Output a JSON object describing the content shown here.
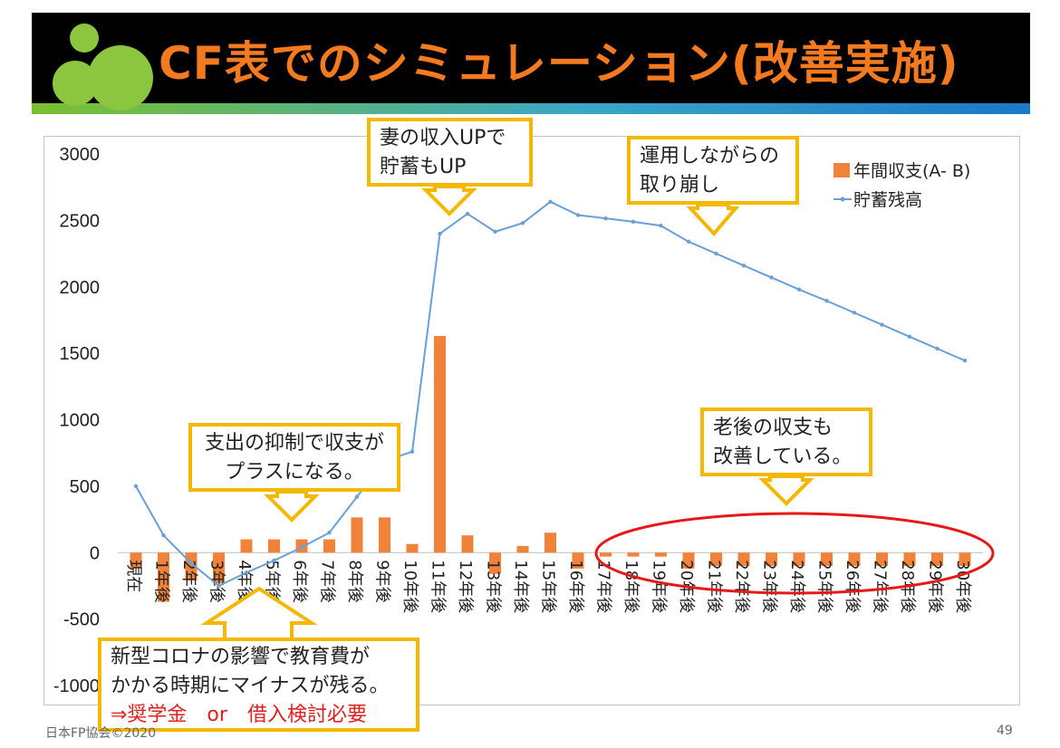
{
  "header": {
    "title": "CF表でのシミュレーション(改善実施)"
  },
  "footer": {
    "org": "日本FP協会©2020",
    "page": "49"
  },
  "annotations": [
    {
      "id": "c1",
      "lines": [
        "妻の収入UPで",
        "貯蓄もUP"
      ]
    },
    {
      "id": "c2",
      "lines": [
        "運用しながらの",
        "取り崩し"
      ]
    },
    {
      "id": "c3",
      "lines": [
        "支出の抑制で収支が",
        "プラスになる。"
      ]
    },
    {
      "id": "c4",
      "lines": [
        "老後の収支も",
        "改善している。"
      ]
    },
    {
      "id": "c5",
      "lines": [
        "新型コロナの影響で教育費が",
        "かかる時期にマイナスが残る。",
        "⇒奨学金　or　借入検討必要"
      ]
    }
  ],
  "colors": {
    "bar": "#f0823a",
    "line": "#6a9fd8",
    "callout_border": "#f5b800",
    "ellipse": "#e61919",
    "title": "#f37a1f"
  },
  "chart_data": {
    "type": "bar",
    "categories": [
      "現在",
      "1年後",
      "2年後",
      "3年後",
      "4年後",
      "5年後",
      "6年後",
      "7年後",
      "8年後",
      "9年後",
      "10年後",
      "11年後",
      "12年後",
      "13年後",
      "14年後",
      "15年後",
      "16年後",
      "17年後",
      "18年後",
      "19年後",
      "20年後",
      "21年後",
      "22年後",
      "23年後",
      "24年後",
      "25年後",
      "26年後",
      "27年後",
      "28年後",
      "29年後",
      "30年後"
    ],
    "series": [
      {
        "name": "年間収支(A- B)",
        "type": "bar",
        "values": [
          -120,
          -370,
          -210,
          -230,
          100,
          100,
          100,
          100,
          265,
          265,
          65,
          1630,
          130,
          -160,
          50,
          150,
          -120,
          -30,
          -30,
          -30,
          -120,
          -100,
          -100,
          -100,
          -100,
          -100,
          -100,
          -100,
          -100,
          -100,
          -100
        ]
      },
      {
        "name": "貯蓄残高",
        "type": "line",
        "values": [
          500,
          130,
          -80,
          -250,
          -150,
          -60,
          40,
          150,
          420,
          690,
          760,
          2400,
          2550,
          2415,
          2480,
          2640,
          2540,
          2515,
          2490,
          2460,
          2340,
          2250,
          2160,
          2070,
          1980,
          1895,
          1805,
          1715,
          1625,
          1535,
          1445
        ]
      }
    ],
    "yticks": [
      3000,
      2500,
      2000,
      1500,
      1000,
      500,
      0,
      -500,
      -1000
    ],
    "ylim": [
      -1000,
      3000
    ],
    "legend": "top-right",
    "grid": false
  }
}
